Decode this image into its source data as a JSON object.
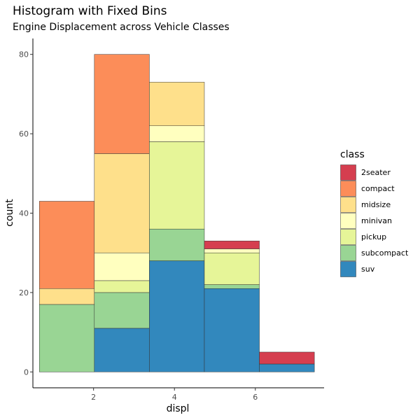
{
  "chart_data": {
    "type": "bar",
    "subtype": "stacked-histogram",
    "title": "Histogram with Fixed Bins",
    "subtitle": "Engine Displacement across Vehicle Classes",
    "xlabel": "displ",
    "ylabel": "count",
    "xlim": [
      0.5,
      7.7
    ],
    "ylim": [
      -4,
      84
    ],
    "xticks": [
      2,
      4,
      6
    ],
    "yticks": [
      0,
      20,
      40,
      60,
      80
    ],
    "bins": [
      {
        "start": 0.66,
        "end": 2.02
      },
      {
        "start": 2.02,
        "end": 3.38
      },
      {
        "start": 3.38,
        "end": 4.74
      },
      {
        "start": 4.74,
        "end": 6.1
      },
      {
        "start": 6.1,
        "end": 7.46
      }
    ],
    "legend_title": "class",
    "legend_position": "right",
    "series": [
      {
        "name": "2seater",
        "color": "#D53E4F",
        "values": [
          0,
          0,
          0,
          2,
          3
        ]
      },
      {
        "name": "compact",
        "color": "#FC8D59",
        "values": [
          22,
          25,
          0,
          0,
          0
        ]
      },
      {
        "name": "midsize",
        "color": "#FEE08B",
        "values": [
          4,
          25,
          11,
          0,
          0
        ]
      },
      {
        "name": "minivan",
        "color": "#FFFFBF",
        "values": [
          0,
          7,
          4,
          1,
          0
        ]
      },
      {
        "name": "pickup",
        "color": "#E6F598",
        "values": [
          0,
          3,
          22,
          8,
          0
        ]
      },
      {
        "name": "subcompact",
        "color": "#99D594",
        "values": [
          17,
          9,
          8,
          1,
          0
        ]
      },
      {
        "name": "suv",
        "color": "#3288BD",
        "values": [
          0,
          11,
          28,
          21,
          2
        ]
      }
    ]
  }
}
